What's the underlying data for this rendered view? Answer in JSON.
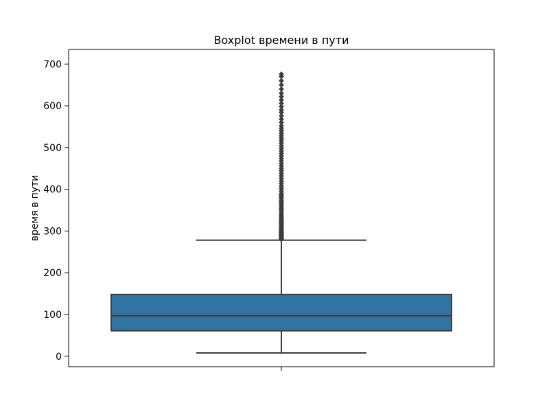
{
  "chart_data": {
    "type": "boxplot",
    "title": "Boxplot времени в пути",
    "xlabel": "",
    "ylabel": "время в пути",
    "ylim": [
      -25,
      735
    ],
    "yticks": [
      0,
      100,
      200,
      300,
      400,
      500,
      600,
      700
    ],
    "ytick_labels": [
      "0",
      "100",
      "200",
      "300",
      "400",
      "500",
      "600",
      "700"
    ],
    "grid": false,
    "box": {
      "color": "#3274a1",
      "edge_color": "#3d3d3d",
      "whisker_low": 8,
      "q1": 61,
      "median": 97,
      "q3": 148,
      "whisker_high": 278,
      "outliers": [
        280,
        282,
        284,
        286,
        288,
        290,
        292,
        294,
        296,
        298,
        300,
        303,
        306,
        309,
        312,
        315,
        318,
        321,
        324,
        327,
        330,
        334,
        338,
        342,
        346,
        350,
        354,
        358,
        362,
        366,
        370,
        374,
        378,
        382,
        386,
        390,
        396,
        402,
        408,
        414,
        420,
        426,
        432,
        438,
        444,
        450,
        456,
        462,
        468,
        474,
        480,
        486,
        492,
        498,
        504,
        510,
        516,
        522,
        528,
        534,
        540,
        546,
        552,
        560,
        568,
        576,
        584,
        590,
        598,
        606,
        614,
        622,
        630,
        640,
        650,
        660,
        670,
        676
      ]
    }
  }
}
